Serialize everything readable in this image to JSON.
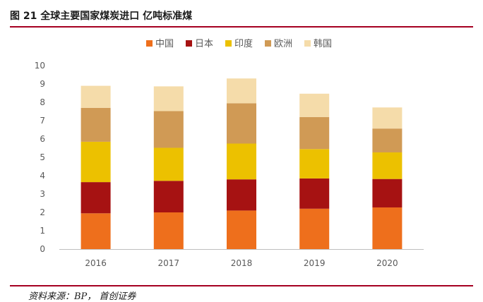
{
  "figure": {
    "caption": "图 21 全球主要国家煤炭进口 亿吨标准煤",
    "source": "资料来源：BP， 首创证券"
  },
  "chart_data": {
    "type": "bar",
    "stacked": true,
    "categories": [
      "2016",
      "2017",
      "2018",
      "2019",
      "2020"
    ],
    "series": [
      {
        "name": "中国",
        "color": "#ee6f1c",
        "values": [
          1.95,
          2.0,
          2.1,
          2.2,
          2.27
        ]
      },
      {
        "name": "日本",
        "color": "#a61212",
        "values": [
          1.7,
          1.72,
          1.7,
          1.65,
          1.55
        ]
      },
      {
        "name": "印度",
        "color": "#ecc100",
        "values": [
          2.2,
          1.8,
          1.95,
          1.6,
          1.45
        ]
      },
      {
        "name": "欧洲",
        "color": "#d09a55",
        "values": [
          1.85,
          2.0,
          2.2,
          1.75,
          1.3
        ]
      },
      {
        "name": "韩国",
        "color": "#f5dcaa",
        "values": [
          1.2,
          1.35,
          1.35,
          1.27,
          1.15
        ]
      }
    ],
    "ylim": [
      0,
      10
    ],
    "yticks": [
      "0",
      "1",
      "2",
      "3",
      "4",
      "5",
      "6",
      "7",
      "8",
      "9",
      "10"
    ],
    "legend_position": "top",
    "grid": false
  }
}
